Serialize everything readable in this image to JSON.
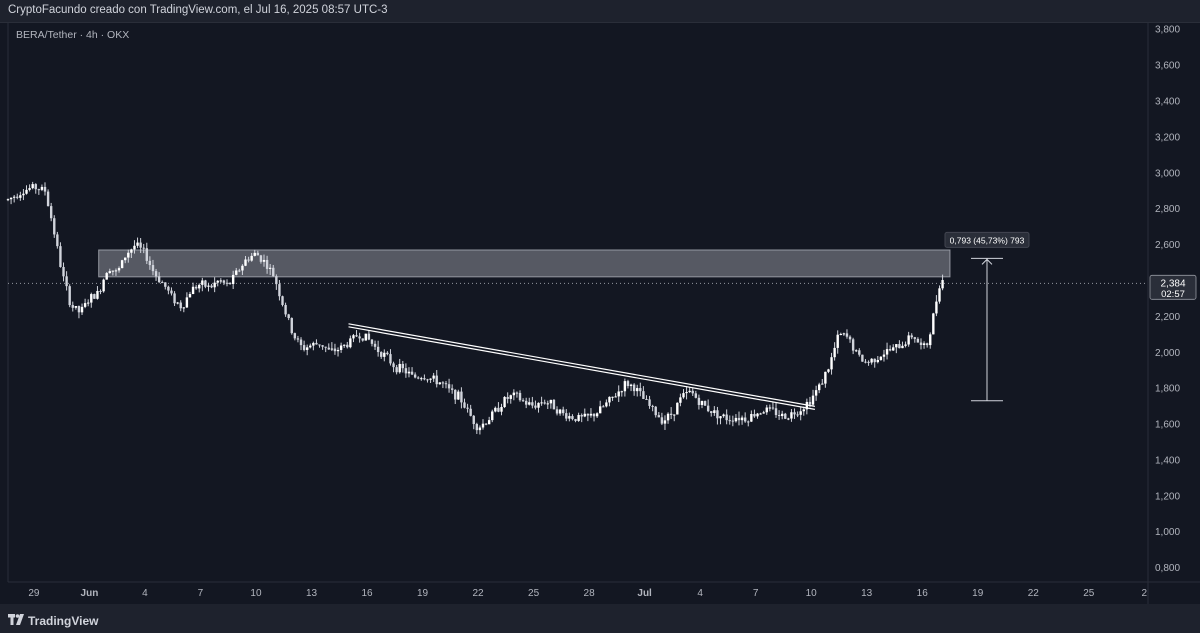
{
  "header": {
    "text": "CryptoFacundo creado con TradingView.com, el Jul 16, 2025 08:57 UTC-3"
  },
  "symbol_label": "BERA/Tether · 4h · OKX",
  "footer": {
    "brand": "TradingView",
    "logo_icon": "tradingview-logo-icon"
  },
  "colors": {
    "background": "#131722",
    "candle": "#d1d4dc",
    "axis_text": "#b2b5be",
    "zone_fill": "#b2b5be",
    "price_label_bg": "#2a2e39"
  },
  "chart_data": {
    "type": "candlestick",
    "title": "BERA/Tether · 4h · OKX",
    "x_ticks": [
      {
        "label": "29",
        "day": 29
      },
      {
        "label": "Jun",
        "day": 32
      },
      {
        "label": "4",
        "day": 35
      },
      {
        "label": "7",
        "day": 38
      },
      {
        "label": "10",
        "day": 41
      },
      {
        "label": "13",
        "day": 44
      },
      {
        "label": "16",
        "day": 47
      },
      {
        "label": "19",
        "day": 50
      },
      {
        "label": "22",
        "day": 53
      },
      {
        "label": "25",
        "day": 56
      },
      {
        "label": "28",
        "day": 59
      },
      {
        "label": "Jul",
        "day": 62
      },
      {
        "label": "4",
        "day": 65
      },
      {
        "label": "7",
        "day": 68
      },
      {
        "label": "10",
        "day": 71
      },
      {
        "label": "13",
        "day": 74
      },
      {
        "label": "16",
        "day": 77
      },
      {
        "label": "19",
        "day": 80
      },
      {
        "label": "22",
        "day": 83
      },
      {
        "label": "25",
        "day": 86
      },
      {
        "label": "2",
        "day": 89
      }
    ],
    "x_range_days": [
      27.6,
      89.2
    ],
    "y_ticks": [
      "3,800",
      "3,600",
      "3,400",
      "3,200",
      "3,000",
      "2,800",
      "2,600",
      "2,400",
      "2,200",
      "2,000",
      "1,800",
      "1,600",
      "1,400",
      "1,200",
      "1,000",
      "0,800"
    ],
    "y_range": [
      0.72,
      3.84
    ],
    "price_path": [
      [
        27.6,
        2.85
      ],
      [
        28.4,
        2.9
      ],
      [
        29.0,
        2.92
      ],
      [
        29.6,
        2.9
      ],
      [
        30.0,
        2.72
      ],
      [
        30.5,
        2.45
      ],
      [
        31.0,
        2.26
      ],
      [
        31.5,
        2.22
      ],
      [
        32.0,
        2.3
      ],
      [
        32.5,
        2.33
      ],
      [
        33.0,
        2.48
      ],
      [
        33.5,
        2.44
      ],
      [
        34.0,
        2.55
      ],
      [
        34.5,
        2.6
      ],
      [
        35.0,
        2.55
      ],
      [
        35.5,
        2.44
      ],
      [
        36.0,
        2.38
      ],
      [
        36.5,
        2.3
      ],
      [
        37.0,
        2.25
      ],
      [
        37.5,
        2.35
      ],
      [
        38.0,
        2.38
      ],
      [
        38.5,
        2.36
      ],
      [
        39.0,
        2.4
      ],
      [
        39.5,
        2.37
      ],
      [
        40.0,
        2.45
      ],
      [
        40.5,
        2.52
      ],
      [
        41.0,
        2.55
      ],
      [
        41.5,
        2.5
      ],
      [
        42.0,
        2.42
      ],
      [
        42.5,
        2.25
      ],
      [
        43.0,
        2.1
      ],
      [
        43.5,
        2.02
      ],
      [
        44.0,
        2.04
      ],
      [
        44.5,
        2.05
      ],
      [
        45.0,
        2.0
      ],
      [
        45.5,
        2.02
      ],
      [
        46.0,
        2.05
      ],
      [
        46.5,
        2.1
      ],
      [
        47.0,
        2.08
      ],
      [
        47.5,
        2.02
      ],
      [
        48.0,
        1.98
      ],
      [
        48.5,
        1.92
      ],
      [
        49.0,
        1.9
      ],
      [
        49.5,
        1.86
      ],
      [
        50.0,
        1.87
      ],
      [
        50.5,
        1.85
      ],
      [
        51.0,
        1.83
      ],
      [
        51.5,
        1.78
      ],
      [
        52.0,
        1.75
      ],
      [
        52.5,
        1.66
      ],
      [
        53.0,
        1.58
      ],
      [
        53.5,
        1.62
      ],
      [
        54.0,
        1.68
      ],
      [
        54.5,
        1.74
      ],
      [
        55.0,
        1.76
      ],
      [
        55.5,
        1.72
      ],
      [
        56.0,
        1.7
      ],
      [
        56.5,
        1.73
      ],
      [
        57.0,
        1.71
      ],
      [
        57.5,
        1.66
      ],
      [
        58.0,
        1.64
      ],
      [
        58.5,
        1.63
      ],
      [
        59.0,
        1.64
      ],
      [
        59.5,
        1.67
      ],
      [
        60.0,
        1.72
      ],
      [
        60.5,
        1.77
      ],
      [
        61.0,
        1.83
      ],
      [
        61.5,
        1.8
      ],
      [
        62.0,
        1.73
      ],
      [
        62.5,
        1.67
      ],
      [
        63.0,
        1.62
      ],
      [
        63.5,
        1.66
      ],
      [
        64.0,
        1.75
      ],
      [
        64.5,
        1.78
      ],
      [
        65.0,
        1.72
      ],
      [
        65.5,
        1.68
      ],
      [
        66.0,
        1.65
      ],
      [
        66.5,
        1.63
      ],
      [
        67.0,
        1.64
      ],
      [
        67.5,
        1.63
      ],
      [
        68.0,
        1.66
      ],
      [
        68.5,
        1.68
      ],
      [
        69.0,
        1.67
      ],
      [
        69.5,
        1.64
      ],
      [
        70.0,
        1.66
      ],
      [
        70.5,
        1.69
      ],
      [
        71.0,
        1.74
      ],
      [
        71.5,
        1.82
      ],
      [
        72.0,
        1.93
      ],
      [
        72.5,
        2.1
      ],
      [
        73.0,
        2.08
      ],
      [
        73.5,
        1.98
      ],
      [
        74.0,
        1.94
      ],
      [
        74.5,
        1.97
      ],
      [
        75.0,
        2.0
      ],
      [
        75.5,
        2.02
      ],
      [
        76.0,
        2.05
      ],
      [
        76.5,
        2.1
      ],
      [
        77.0,
        2.02
      ],
      [
        77.3,
        2.05
      ],
      [
        77.6,
        2.2
      ],
      [
        78.0,
        2.42
      ],
      [
        78.2,
        2.384
      ]
    ],
    "resistance_zone": {
      "from": 2.42,
      "to": 2.57,
      "x_start_day": 32.5,
      "x_end_day": 78.5
    },
    "trendline": {
      "start": [
        46.0,
        2.15
      ],
      "end": [
        71.2,
        1.69
      ]
    },
    "current_price": {
      "value": 2.384,
      "label": "2,384",
      "countdown": "02:57"
    },
    "measure": {
      "label": "0,793 (45,73%) 793",
      "from": 1.73,
      "to": 2.523,
      "x_day": 80.5
    }
  }
}
